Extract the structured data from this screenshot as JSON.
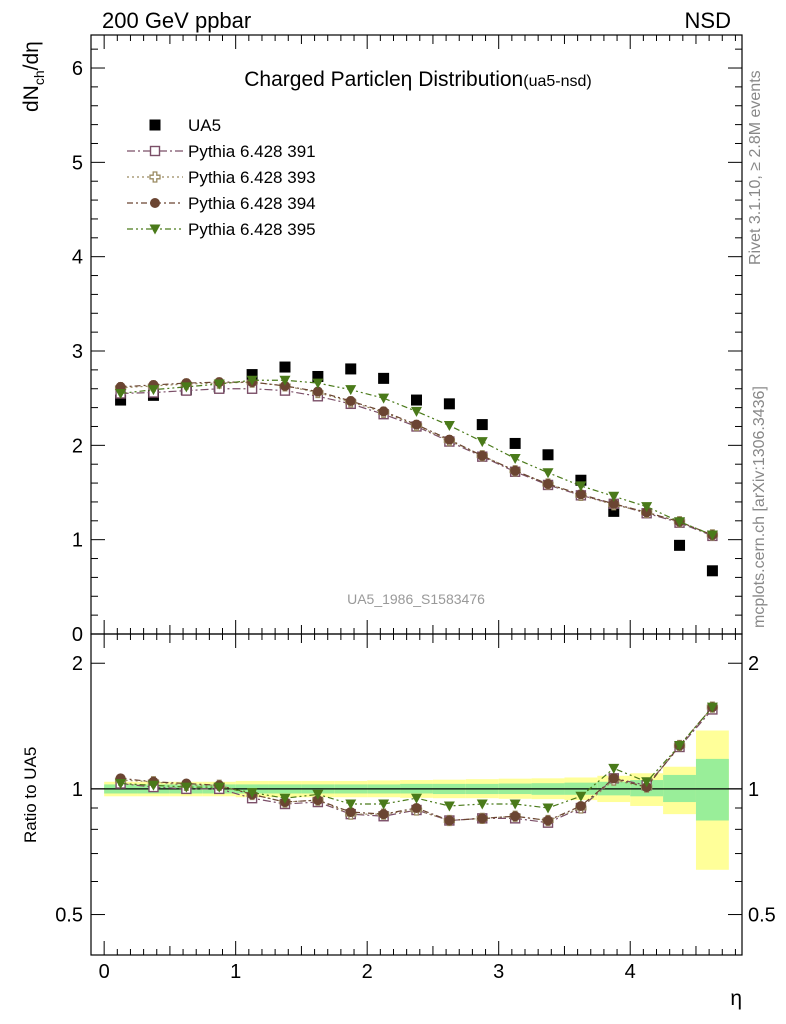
{
  "header": {
    "left": "200 GeV ppbar",
    "right": "NSD"
  },
  "title": {
    "main": "Charged Particle",
    "symbol": "η",
    "rest": " Distribution",
    "tag": "(ua5-nsd)"
  },
  "side_text": {
    "rivet": "Rivet 3.1.10, ≥ 2.8M events",
    "mcplots": "mcplots.cern.ch [arXiv:1306.3436]"
  },
  "analysis_label": "UA5_1986_S1583476",
  "chart_data": [
    {
      "type": "scatter",
      "ylabel": {
        "base": "dN",
        "sub": "ch",
        "tail": "/dη"
      },
      "xlabel": "η",
      "xlim": [
        -0.1,
        4.85
      ],
      "ylim": [
        0,
        6.35
      ],
      "yticks": [
        0,
        1,
        2,
        3,
        4,
        5,
        6
      ],
      "xticks": [
        0,
        1,
        2,
        3,
        4
      ],
      "x": [
        0.125,
        0.375,
        0.625,
        0.875,
        1.125,
        1.375,
        1.625,
        1.875,
        2.125,
        2.375,
        2.625,
        2.875,
        3.125,
        3.375,
        3.625,
        3.875,
        4.125,
        4.375,
        4.625
      ],
      "series": [
        {
          "name": "UA5",
          "color": "#000000",
          "marker": "square-filled",
          "values": [
            2.48,
            2.53,
            2.59,
            2.62,
            2.75,
            2.83,
            2.73,
            2.81,
            2.71,
            2.48,
            2.44,
            2.22,
            2.02,
            1.9,
            1.63,
            1.3,
            null,
            0.94,
            0.67
          ]
        },
        {
          "name": "Pythia 6.428 391",
          "color": "#7b4f68",
          "marker": "square-open",
          "dash": "8,3,2,3",
          "values": [
            2.55,
            2.56,
            2.58,
            2.6,
            2.6,
            2.58,
            2.52,
            2.44,
            2.33,
            2.2,
            2.04,
            1.88,
            1.72,
            1.58,
            1.47,
            1.38,
            1.28,
            1.18,
            1.04
          ]
        },
        {
          "name": "Pythia 6.428 393",
          "color": "#9a8b62",
          "marker": "cross-open",
          "dash": "2,3",
          "values": [
            2.61,
            2.63,
            2.65,
            2.66,
            2.67,
            2.63,
            2.56,
            2.46,
            2.35,
            2.21,
            2.05,
            1.89,
            1.73,
            1.59,
            1.47,
            1.37,
            1.29,
            1.19,
            1.05
          ]
        },
        {
          "name": "Pythia 6.428 394",
          "color": "#6b4532",
          "marker": "circle-filled",
          "dash": "6,3,2,3",
          "values": [
            2.62,
            2.64,
            2.66,
            2.67,
            2.67,
            2.63,
            2.57,
            2.47,
            2.36,
            2.22,
            2.06,
            1.89,
            1.73,
            1.59,
            1.48,
            1.38,
            1.29,
            1.19,
            1.05
          ]
        },
        {
          "name": "Pythia 6.428 395",
          "color": "#4a7a1a",
          "marker": "triangle-down-filled",
          "dash": "6,3,2,3,2,3",
          "values": [
            2.55,
            2.59,
            2.62,
            2.65,
            2.69,
            2.69,
            2.66,
            2.59,
            2.5,
            2.36,
            2.21,
            2.04,
            1.86,
            1.71,
            1.57,
            1.46,
            1.35,
            1.19,
            1.05
          ]
        }
      ]
    },
    {
      "type": "scatter",
      "ylabel": "Ratio to UA5",
      "xlabel": "η",
      "xlim": [
        -0.1,
        4.85
      ],
      "ylim": [
        0.4,
        2.35
      ],
      "yscale": "log",
      "yticks": [
        0.5,
        1,
        2
      ],
      "reference_line": 1,
      "band_edges": [
        0,
        0.25,
        0.5,
        0.75,
        1.0,
        1.25,
        1.5,
        1.75,
        2.0,
        2.25,
        2.5,
        2.75,
        3.0,
        3.25,
        3.5,
        3.75,
        4.0,
        4.25,
        4.5,
        4.75
      ],
      "band_green": [
        [
          0.975,
          1.025
        ],
        [
          0.975,
          1.025
        ],
        [
          0.975,
          1.025
        ],
        [
          0.975,
          1.025
        ],
        [
          0.975,
          1.025
        ],
        [
          0.975,
          1.025
        ],
        [
          0.975,
          1.025
        ],
        [
          0.975,
          1.025
        ],
        [
          0.975,
          1.025
        ],
        [
          0.975,
          1.028
        ],
        [
          0.972,
          1.028
        ],
        [
          0.972,
          1.028
        ],
        [
          0.972,
          1.03
        ],
        [
          0.968,
          1.032
        ],
        [
          0.968,
          1.035
        ],
        [
          0.965,
          1.04
        ],
        [
          0.96,
          1.05
        ],
        [
          0.93,
          1.08
        ],
        [
          0.84,
          1.18
        ]
      ],
      "band_yellow": [
        [
          0.96,
          1.04
        ],
        [
          0.96,
          1.04
        ],
        [
          0.96,
          1.04
        ],
        [
          0.96,
          1.04
        ],
        [
          0.955,
          1.045
        ],
        [
          0.955,
          1.045
        ],
        [
          0.955,
          1.045
        ],
        [
          0.955,
          1.045
        ],
        [
          0.955,
          1.048
        ],
        [
          0.952,
          1.05
        ],
        [
          0.95,
          1.052
        ],
        [
          0.95,
          1.055
        ],
        [
          0.947,
          1.058
        ],
        [
          0.945,
          1.06
        ],
        [
          0.94,
          1.065
        ],
        [
          0.93,
          1.075
        ],
        [
          0.91,
          1.09
        ],
        [
          0.87,
          1.13
        ],
        [
          0.64,
          1.38
        ]
      ],
      "x": [
        0.125,
        0.375,
        0.625,
        0.875,
        1.125,
        1.375,
        1.625,
        1.875,
        2.125,
        2.375,
        2.625,
        2.875,
        3.125,
        3.375,
        3.625,
        3.875,
        4.125,
        4.375,
        4.625
      ],
      "series": [
        {
          "name": "Pythia 6.428 391",
          "color": "#7b4f68",
          "marker": "square-open",
          "dash": "8,3,2,3",
          "values": [
            1.03,
            1.01,
            1.0,
            1.0,
            0.95,
            0.92,
            0.93,
            0.87,
            0.86,
            0.89,
            0.84,
            0.85,
            0.85,
            0.83,
            0.9,
            1.06,
            1.02,
            1.26,
            1.55
          ]
        },
        {
          "name": "Pythia 6.428 393",
          "color": "#9a8b62",
          "marker": "cross-open",
          "dash": "2,3",
          "values": [
            1.05,
            1.04,
            1.02,
            1.02,
            0.97,
            0.93,
            0.94,
            0.87,
            0.87,
            0.89,
            0.84,
            0.85,
            0.86,
            0.84,
            0.9,
            1.05,
            1.01,
            1.27,
            1.57
          ]
        },
        {
          "name": "Pythia 6.428 394",
          "color": "#6b4532",
          "marker": "circle-filled",
          "dash": "6,3,2,3",
          "values": [
            1.06,
            1.04,
            1.03,
            1.02,
            0.97,
            0.93,
            0.94,
            0.88,
            0.87,
            0.9,
            0.84,
            0.85,
            0.86,
            0.84,
            0.91,
            1.06,
            1.01,
            1.27,
            1.57
          ]
        },
        {
          "name": "Pythia 6.428 395",
          "color": "#4a7a1a",
          "marker": "triangle-down-filled",
          "dash": "6,3,2,3,2,3",
          "values": [
            1.03,
            1.02,
            1.01,
            1.01,
            0.98,
            0.95,
            0.97,
            0.92,
            0.92,
            0.95,
            0.91,
            0.92,
            0.92,
            0.9,
            0.96,
            1.12,
            1.04,
            1.27,
            1.57
          ]
        }
      ]
    }
  ]
}
